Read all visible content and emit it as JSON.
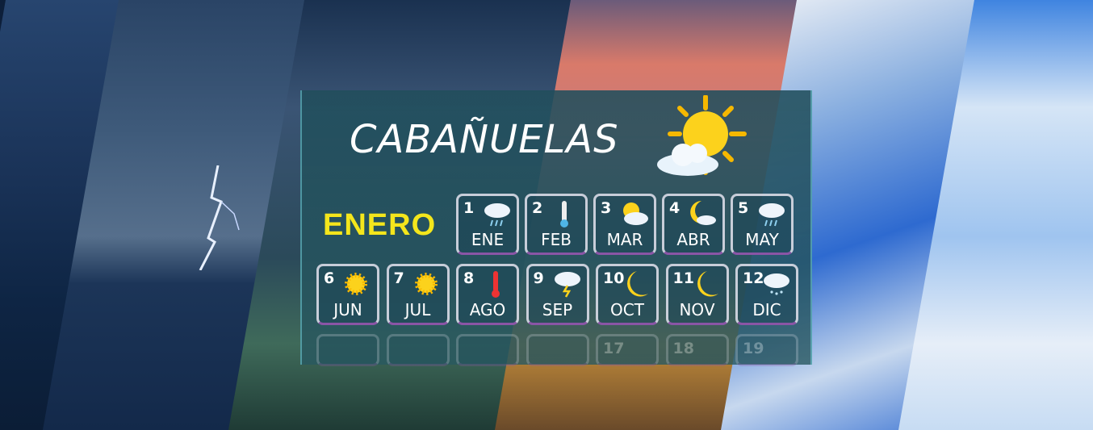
{
  "title": "CABAÑUELAS",
  "month_heading": "ENERO",
  "colors": {
    "heading": "#f4e61c",
    "title": "#ffffff",
    "cell_border": "#8a55a6"
  },
  "days": [
    {
      "num": "1",
      "month": "ENE",
      "icon": "cloud-rain-icon"
    },
    {
      "num": "2",
      "month": "FEB",
      "icon": "thermometer-cold-icon"
    },
    {
      "num": "3",
      "month": "MAR",
      "icon": "sun-behind-cloud-icon"
    },
    {
      "num": "4",
      "month": "ABR",
      "icon": "moon-cloud-icon"
    },
    {
      "num": "5",
      "month": "MAY",
      "icon": "cloud-rain-icon"
    },
    {
      "num": "6",
      "month": "JUN",
      "icon": "sun-icon"
    },
    {
      "num": "7",
      "month": "JUL",
      "icon": "sun-icon"
    },
    {
      "num": "8",
      "month": "AGO",
      "icon": "thermometer-hot-icon"
    },
    {
      "num": "9",
      "month": "SEP",
      "icon": "cloud-lightning-icon"
    },
    {
      "num": "10",
      "month": "OCT",
      "icon": "moon-icon"
    },
    {
      "num": "11",
      "month": "NOV",
      "icon": "moon-icon"
    },
    {
      "num": "12",
      "month": "DIC",
      "icon": "cloud-snow-icon"
    }
  ],
  "faded_days": [
    "",
    "",
    "",
    "",
    "17",
    "18",
    "19"
  ]
}
